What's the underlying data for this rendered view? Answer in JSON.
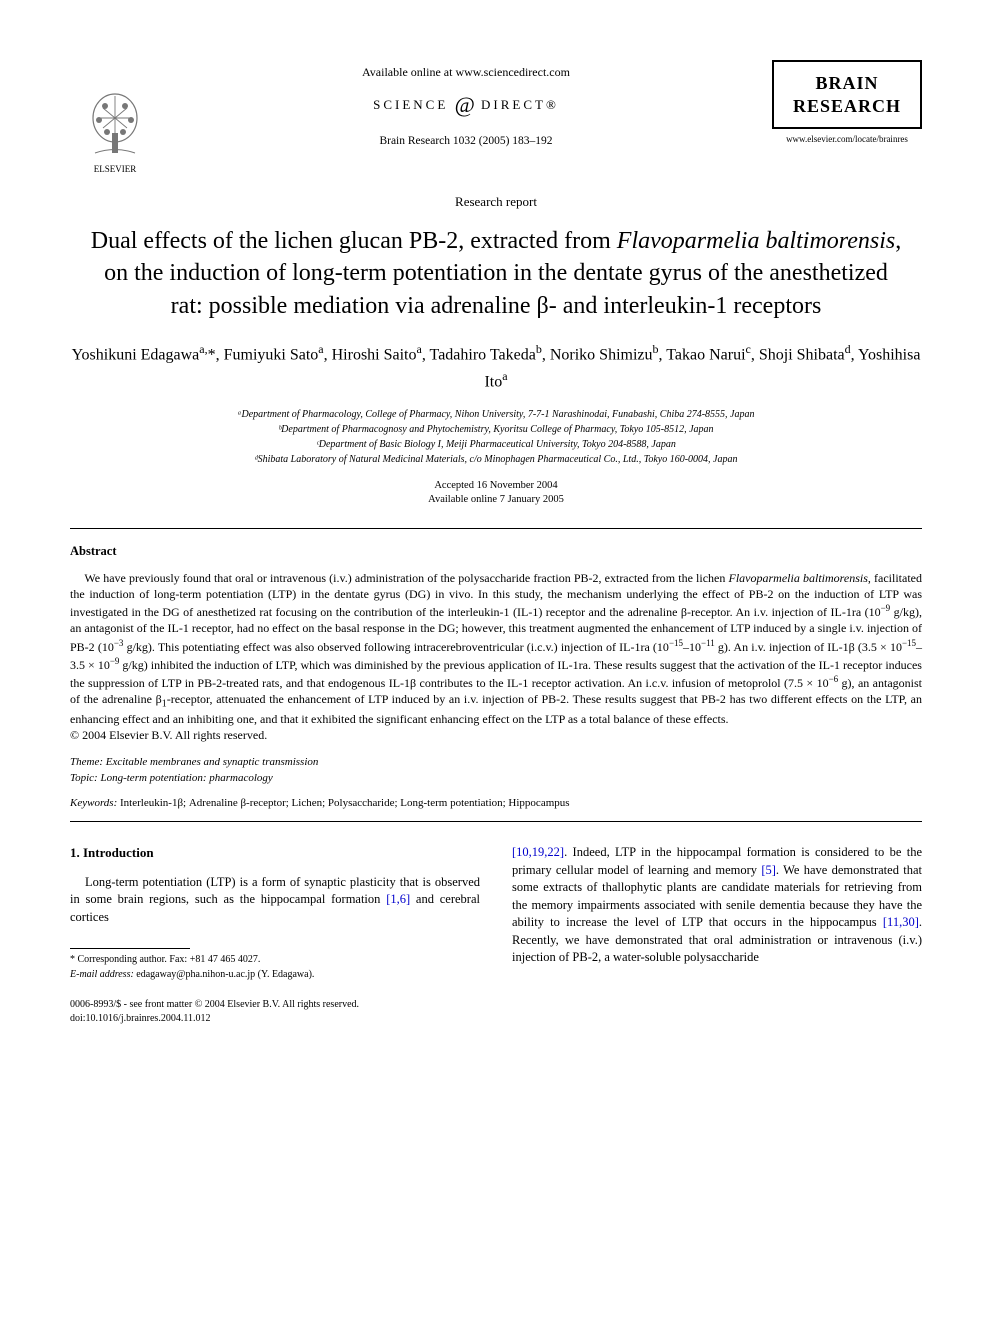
{
  "header": {
    "available_online": "Available online at www.sciencedirect.com",
    "sciencedirect_left": "SCIENCE",
    "sciencedirect_right": "DIRECT®",
    "journal_ref": "Brain Research 1032 (2005) 183–192",
    "elsevier_label": "ELSEVIER",
    "brain_box_line1": "BRAIN",
    "brain_box_line2": "RESEARCH",
    "brain_url": "www.elsevier.com/locate/brainres"
  },
  "colors": {
    "text": "#000000",
    "background": "#ffffff",
    "link": "#0000cc",
    "rule": "#000000"
  },
  "article": {
    "report_type": "Research report",
    "title": "Dual effects of the lichen glucan PB-2, extracted from Flavoparmelia baltimorensis, on the induction of long-term potentiation in the dentate gyrus of the anesthetized rat: possible mediation via adrenaline β- and interleukin-1 receptors",
    "title_html": "Dual effects of the lichen glucan PB-2, extracted from <i>Flavoparmelia baltimorensis</i>, on the induction of long-term potentiation in the dentate gyrus of the anesthetized rat: possible mediation via adrenaline β- and interleukin-1 receptors",
    "authors_html": "Yoshikuni Edagawa<sup>a,</sup>*, Fumiyuki Sato<sup>a</sup>, Hiroshi Saito<sup>a</sup>, Tadahiro Takeda<sup>b</sup>, Noriko Shimizu<sup>b</sup>, Takao Narui<sup>c</sup>, Shoji Shibata<sup>d</sup>, Yoshihisa Ito<sup>a</sup>",
    "affiliations": [
      "ᵃDepartment of Pharmacology, College of Pharmacy, Nihon University, 7-7-1 Narashinodai, Funabashi, Chiba 274-8555, Japan",
      "ᵇDepartment of Pharmacognosy and Phytochemistry, Kyoritsu College of Pharmacy, Tokyo 105-8512, Japan",
      "ᶜDepartment of Basic Biology I, Meiji Pharmaceutical University, Tokyo 204-8588, Japan",
      "ᵈShibata Laboratory of Natural Medicinal Materials, c/o Minophagen Pharmaceutical Co., Ltd., Tokyo 160-0004, Japan"
    ],
    "accepted": "Accepted 16 November 2004",
    "available": "Available online 7 January 2005"
  },
  "abstract": {
    "label": "Abstract",
    "body_html": "We have previously found that oral or intravenous (i.v.) administration of the polysaccharide fraction PB-2, extracted from the lichen <i>Flavoparmelia baltimorensis</i>, facilitated the induction of long-term potentiation (LTP) in the dentate gyrus (DG) in vivo. In this study, the mechanism underlying the effect of PB-2 on the induction of LTP was investigated in the DG of anesthetized rat focusing on the contribution of the interleukin-1 (IL-1) receptor and the adrenaline β-receptor. An i.v. injection of IL-1ra (10<sup>−9</sup> g/kg), an antagonist of the IL-1 receptor, had no effect on the basal response in the DG; however, this treatment augmented the enhancement of LTP induced by a single i.v. injection of PB-2 (10<sup>−3</sup> g/kg). This potentiating effect was also observed following intracerebroventricular (i.c.v.) injection of IL-1ra (10<sup>−15</sup>–10<sup>−11</sup> g). An i.v. injection of IL-1β (3.5 × 10<sup>−15</sup>–3.5 × 10<sup>−9</sup> g/kg) inhibited the induction of LTP, which was diminished by the previous application of IL-1ra. These results suggest that the activation of the IL-1 receptor induces the suppression of LTP in PB-2-treated rats, and that endogenous IL-1β contributes to the IL-1 receptor activation. An i.c.v. infusion of metoprolol (7.5 × 10<sup>−6</sup> g), an antagonist of the adrenaline β<sub>1</sub>-receptor, attenuated the enhancement of LTP induced by an i.v. injection of PB-2. These results suggest that PB-2 has two different effects on the LTP, an enhancing effect and an inhibiting one, and that it exhibited the significant enhancing effect on the LTP as a total balance of these effects.",
    "copyright": "© 2004 Elsevier B.V. All rights reserved."
  },
  "theme": {
    "theme_label": "Theme:",
    "theme_value": "Excitable membranes and synaptic transmission",
    "topic_label": "Topic:",
    "topic_value": "Long-term potentiation: pharmacology"
  },
  "keywords": {
    "label": "Keywords:",
    "value": "Interleukin-1β; Adrenaline β-receptor; Lichen; Polysaccharide; Long-term potentiation; Hippocampus"
  },
  "intro": {
    "heading": "1. Introduction",
    "col1_html": "Long-term potentiation (LTP) is a form of synaptic plasticity that is observed in some brain regions, such as the hippocampal formation <span class=\"ref-link\">[1,6]</span> and cerebral cortices",
    "col2_html": "<span class=\"ref-link\">[10,19,22]</span>. Indeed, LTP in the hippocampal formation is considered to be the primary cellular model of learning and memory <span class=\"ref-link\">[5]</span>. We have demonstrated that some extracts of thallophytic plants are candidate materials for retrieving from the memory impairments associated with senile dementia because they have the ability to increase the level of LTP that occurs in the hippocampus <span class=\"ref-link\">[11,30]</span>. Recently, we have demonstrated that oral administration or intravenous (i.v.) injection of PB-2, a water-soluble polysaccharide"
  },
  "footnotes": {
    "corresponding": "* Corresponding author. Fax: +81 47 465 4027.",
    "email_label": "E-mail address:",
    "email_value": "edagaway@pha.nihon-u.ac.jp (Y. Edagawa)."
  },
  "footer": {
    "issn_line": "0006-8993/$ - see front matter © 2004 Elsevier B.V. All rights reserved.",
    "doi": "doi:10.1016/j.brainres.2004.11.012"
  },
  "typography": {
    "title_fontsize_pt": 18,
    "authors_fontsize_pt": 12,
    "body_fontsize_pt": 9.5,
    "abstract_fontsize_pt": 9,
    "affiliation_fontsize_pt": 7.5,
    "font_family": "Times New Roman"
  }
}
